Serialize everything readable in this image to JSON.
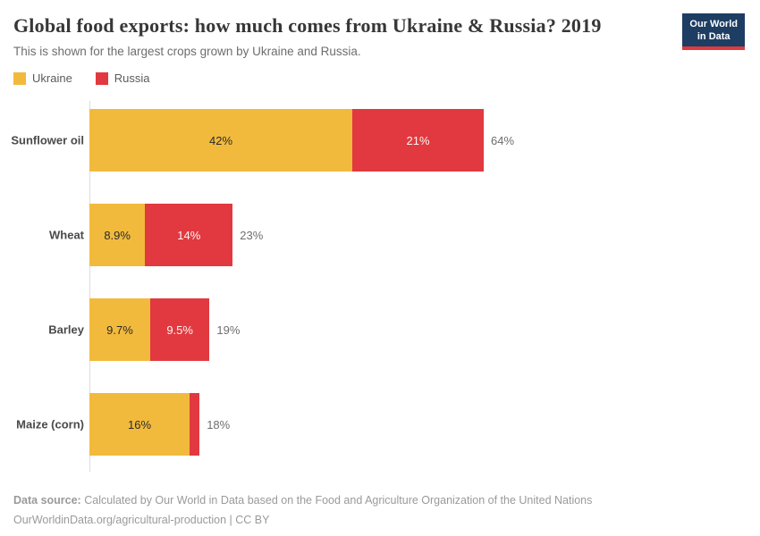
{
  "header": {
    "title": "Global food exports: how much comes from Ukraine & Russia? 2019",
    "subtitle": "This is shown for the largest crops grown by Ukraine and Russia."
  },
  "logo": {
    "line1": "Our World",
    "line2": "in Data"
  },
  "colors": {
    "ukraine": "#F2BA3C",
    "russia": "#E1393F",
    "logo_background": "#1D3D63",
    "logo_accent": "#E0393E",
    "axis_line": "#DCDCDC"
  },
  "chart_data": {
    "type": "bar",
    "orientation": "horizontal",
    "stacked": true,
    "unit": "%",
    "grid": false,
    "legend_position": "top-left",
    "xlim": [
      0,
      100
    ],
    "categories": [
      "Sunflower oil",
      "Wheat",
      "Barley",
      "Maize (corn)"
    ],
    "series": [
      {
        "name": "Ukraine",
        "color": "#F2BA3C",
        "values": [
          42,
          8.9,
          9.7,
          16
        ],
        "labels": [
          "42%",
          "8.9%",
          "9.7%",
          "16%"
        ]
      },
      {
        "name": "Russia",
        "color": "#E1393F",
        "values": [
          21,
          14,
          9.5,
          1.6
        ],
        "labels": [
          "21%",
          "14%",
          "9.5%",
          ""
        ]
      }
    ],
    "totals": [
      "64%",
      "23%",
      "19%",
      "18%"
    ],
    "title": "Global food exports: how much comes from Ukraine & Russia? 2019",
    "xlabel": "",
    "ylabel": ""
  },
  "footer": {
    "source_label": "Data source:",
    "source_text": "Calculated by Our World in Data based on the Food and Agriculture Organization of the United Nations",
    "citation": "OurWorldinData.org/agricultural-production | CC BY"
  }
}
